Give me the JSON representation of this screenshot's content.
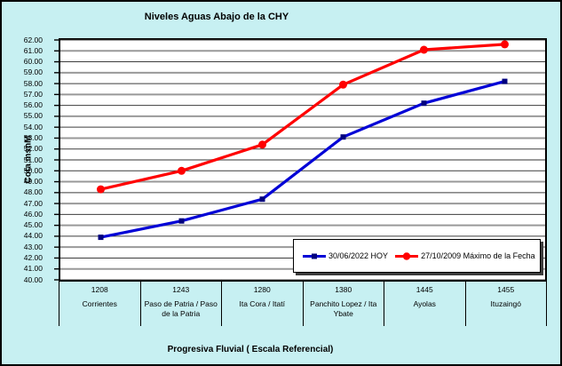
{
  "title": "Niveles Aguas Abajo de la CHY",
  "y_axis": {
    "title": "Cota msnM",
    "tick_labels": [
      "62.00",
      "61.00",
      "60.00",
      "59.00",
      "58.00",
      "57.00",
      "56.00",
      "55.00",
      "54.00",
      "53.00",
      "52.00",
      "51.00",
      "50.00",
      "49.00",
      "48.00",
      "47.00",
      "46.00",
      "45.00",
      "44.00",
      "43.00",
      "42.00",
      "41.00",
      "40.00"
    ]
  },
  "x_axis": {
    "title": "Progresiva Fluvial ( Escala Referencial)"
  },
  "colors": {
    "background": "#C7F0F2",
    "plot_background": "#FFFFFF",
    "border": "#000000",
    "gridline_dark": "#3d3d3d",
    "gridline_gray": "#999999",
    "series_blue": "#0000D6",
    "series_blue_marker": "#00007E",
    "series_red": "#FF0000",
    "legend_shadow": "#3c3c3c"
  },
  "chart_data": {
    "type": "line",
    "title": "Niveles Aguas Abajo de la CHY",
    "xlabel": "Progresiva Fluvial ( Escala Referencial)",
    "ylabel": "Cota msnM",
    "ylim": [
      40,
      62
    ],
    "ytick_step": 1,
    "grid": true,
    "legend_position": "inside-bottom-right",
    "categories": [
      {
        "km": "1208",
        "name": "Corrientes"
      },
      {
        "km": "1243",
        "name": "Paso de Patria / Paso de la Patria"
      },
      {
        "km": "1280",
        "name": "Ita Cora / Itatí"
      },
      {
        "km": "1380",
        "name": "Panchito Lopez / Ita Ybate"
      },
      {
        "km": "1445",
        "name": "Ayolas"
      },
      {
        "km": "1455",
        "name": "Ituzaingó"
      }
    ],
    "series": [
      {
        "name": "30/06/2022 HOY",
        "color": "#0000D6",
        "marker": "square",
        "marker_color": "#00007E",
        "values": [
          43.9,
          45.4,
          47.4,
          53.1,
          56.2,
          58.2
        ]
      },
      {
        "name": "27/10/2009 Máximo de la Fecha",
        "color": "#FF0000",
        "marker": "circle",
        "marker_color": "#FF0000",
        "values": [
          48.3,
          50.0,
          52.4,
          57.9,
          61.1,
          61.6
        ]
      }
    ]
  }
}
